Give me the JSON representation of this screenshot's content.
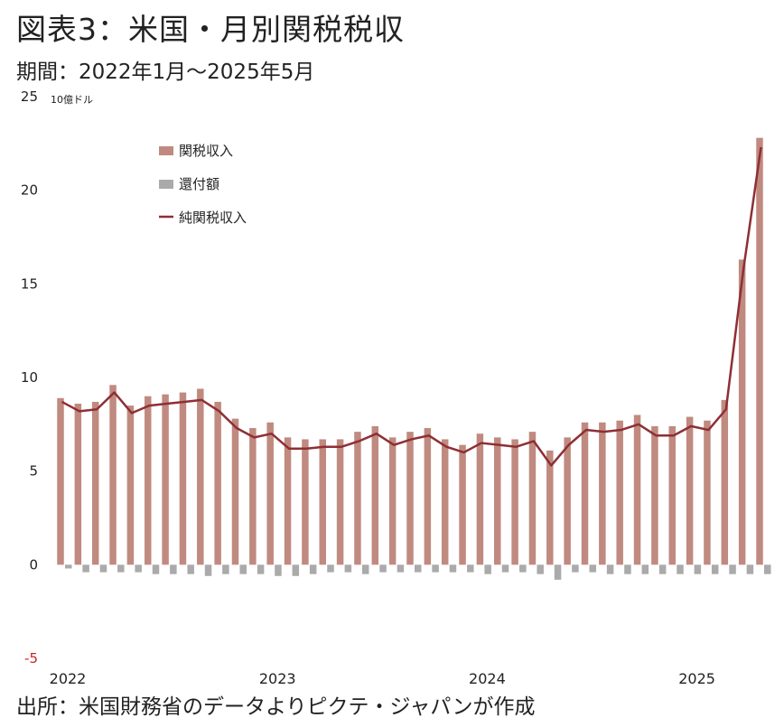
{
  "header": {
    "title": "図表3：米国・月別関税税収",
    "subtitle": "期間：2022年1月～2025年5月"
  },
  "footer": {
    "source": "出所：米国財務省のデータよりピクテ・ジャパンが作成"
  },
  "colors": {
    "tariff_bar": "#c08a80",
    "refund_bar": "#aaaaaa",
    "net_line": "#8e2f35",
    "negative_tick": "#cc2222"
  },
  "chart_data": {
    "type": "bar",
    "unit_label": "10億ドル",
    "ylim": [
      -5,
      25
    ],
    "yticks": [
      -5,
      0,
      5,
      10,
      15,
      20,
      25
    ],
    "x_tick_labels": [
      "2022",
      "2023",
      "2024",
      "2025"
    ],
    "x_tick_positions": [
      0,
      12,
      24,
      36
    ],
    "categories": [
      "2022-01",
      "2022-02",
      "2022-03",
      "2022-04",
      "2022-05",
      "2022-06",
      "2022-07",
      "2022-08",
      "2022-09",
      "2022-10",
      "2022-11",
      "2022-12",
      "2023-01",
      "2023-02",
      "2023-03",
      "2023-04",
      "2023-05",
      "2023-06",
      "2023-07",
      "2023-08",
      "2023-09",
      "2023-10",
      "2023-11",
      "2023-12",
      "2024-01",
      "2024-02",
      "2024-03",
      "2024-04",
      "2024-05",
      "2024-06",
      "2024-07",
      "2024-08",
      "2024-09",
      "2024-10",
      "2024-11",
      "2024-12",
      "2025-01",
      "2025-02",
      "2025-03",
      "2025-04",
      "2025-05"
    ],
    "legend": [
      "関税収入",
      "還付額",
      "純関税収入"
    ],
    "series": [
      {
        "name": "関税収入",
        "type": "bar",
        "values": [
          8.9,
          8.6,
          8.7,
          9.6,
          8.5,
          9.0,
          9.1,
          9.2,
          9.4,
          8.7,
          7.8,
          7.3,
          7.6,
          6.8,
          6.7,
          6.7,
          6.7,
          7.1,
          7.4,
          6.8,
          7.1,
          7.3,
          6.7,
          6.4,
          7.0,
          6.8,
          6.7,
          7.1,
          6.1,
          6.8,
          7.6,
          7.6,
          7.7,
          8.0,
          7.4,
          7.4,
          7.9,
          7.7,
          8.8,
          16.3,
          22.8
        ]
      },
      {
        "name": "還付額",
        "type": "bar",
        "values": [
          -0.2,
          -0.4,
          -0.4,
          -0.4,
          -0.4,
          -0.5,
          -0.5,
          -0.5,
          -0.6,
          -0.5,
          -0.5,
          -0.5,
          -0.6,
          -0.6,
          -0.5,
          -0.4,
          -0.4,
          -0.5,
          -0.4,
          -0.4,
          -0.4,
          -0.4,
          -0.4,
          -0.4,
          -0.5,
          -0.4,
          -0.4,
          -0.5,
          -0.8,
          -0.4,
          -0.4,
          -0.5,
          -0.5,
          -0.5,
          -0.5,
          -0.5,
          -0.5,
          -0.5,
          -0.5,
          -0.5,
          -0.5
        ]
      },
      {
        "name": "純関税収入",
        "type": "line",
        "values": [
          8.7,
          8.2,
          8.3,
          9.2,
          8.1,
          8.5,
          8.6,
          8.7,
          8.8,
          8.2,
          7.3,
          6.8,
          7.0,
          6.2,
          6.2,
          6.3,
          6.3,
          6.6,
          7.0,
          6.4,
          6.7,
          6.9,
          6.3,
          6.0,
          6.5,
          6.4,
          6.3,
          6.6,
          5.3,
          6.4,
          7.2,
          7.1,
          7.2,
          7.5,
          6.9,
          6.9,
          7.4,
          7.2,
          8.3,
          15.8,
          22.3
        ]
      }
    ]
  }
}
